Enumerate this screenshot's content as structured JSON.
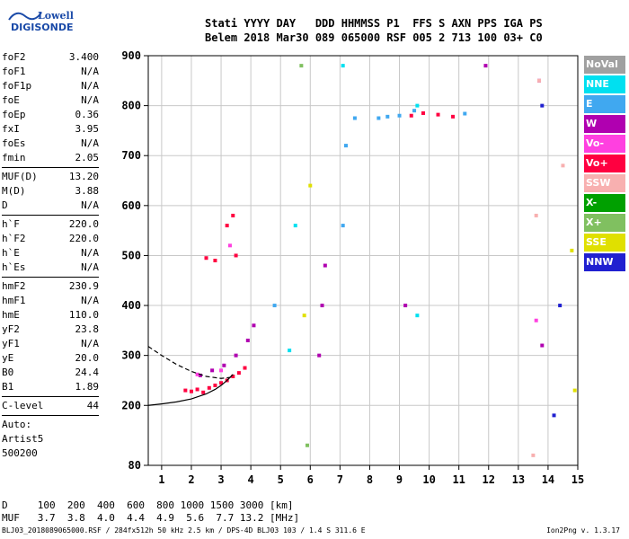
{
  "logo": {
    "line1": "Lowell",
    "line2": "DIGISONDE"
  },
  "header": {
    "line1": "Stati YYYY DAY   DDD HHMMSS P1  FFS S AXN PPS IGA PS",
    "line2": "Belem 2018 Mar30 089 065000 RSF 005 2 713 100 03+ C0"
  },
  "params": {
    "group1": [
      {
        "k": "foF2",
        "v": "3.400"
      },
      {
        "k": "foF1",
        "v": "N/A"
      },
      {
        "k": "foF1p",
        "v": "N/A"
      },
      {
        "k": "foE",
        "v": "N/A"
      },
      {
        "k": "foEp",
        "v": "0.36"
      },
      {
        "k": "fxI",
        "v": "3.95"
      },
      {
        "k": "foEs",
        "v": "N/A"
      },
      {
        "k": "fmin",
        "v": "2.05"
      }
    ],
    "group2": [
      {
        "k": "MUF(D)",
        "v": "13.20"
      },
      {
        "k": "M(D)",
        "v": "3.88"
      },
      {
        "k": "D",
        "v": "N/A"
      }
    ],
    "group3": [
      {
        "k": "h`F",
        "v": "220.0"
      },
      {
        "k": "h`F2",
        "v": "220.0"
      },
      {
        "k": "h`E",
        "v": "N/A"
      },
      {
        "k": "h`Es",
        "v": "N/A"
      }
    ],
    "group4": [
      {
        "k": "hmF2",
        "v": "230.9"
      },
      {
        "k": "hmF1",
        "v": "N/A"
      },
      {
        "k": "hmE",
        "v": "110.0"
      },
      {
        "k": "yF2",
        "v": "23.8"
      },
      {
        "k": "yF1",
        "v": "N/A"
      },
      {
        "k": "yE",
        "v": "20.0"
      },
      {
        "k": "B0",
        "v": "24.4"
      },
      {
        "k": "B1",
        "v": "1.89"
      }
    ],
    "group5": [
      {
        "k": "C-level",
        "v": "44"
      }
    ],
    "auto": [
      "Auto:",
      "Artist5",
      "500200"
    ]
  },
  "legend": [
    {
      "label": "NoVal",
      "color": "#a0a0a0"
    },
    {
      "label": "NNE",
      "color": "#00e0f0"
    },
    {
      "label": "E",
      "color": "#40a8f0"
    },
    {
      "label": "W",
      "color": "#b000b0"
    },
    {
      "label": "Vo-",
      "color": "#ff40e0"
    },
    {
      "label": "Vo+",
      "color": "#ff0040"
    },
    {
      "label": "SSW",
      "color": "#f8b0b0"
    },
    {
      "label": "X-",
      "color": "#00a000"
    },
    {
      "label": "X+",
      "color": "#80c060"
    },
    {
      "label": "SSE",
      "color": "#e0e000"
    },
    {
      "label": "NNW",
      "color": "#2020d0"
    }
  ],
  "dmuf": {
    "line1": "D     100  200  400  600  800 1000 1500 3000 [km]",
    "line2": "MUF   3.7  3.8  4.0  4.4  4.9  5.6  7.7 13.2 [MHz]"
  },
  "footer": "BLJ03_2018089065000.RSF / 284fx512h 50 kHz 2.5 km / DPS-4D BLJ03 103 / 1.4 S 311.6 E",
  "version": "Ion2Png v. 1.3.17",
  "chart_data": {
    "type": "scatter",
    "title": "",
    "xlabel": "",
    "ylabel": "",
    "xlim": [
      0.55,
      15
    ],
    "ylim": [
      80,
      900
    ],
    "xticks": [
      1,
      2,
      3,
      4,
      5,
      6,
      7,
      8,
      9,
      10,
      11,
      12,
      13,
      14,
      15
    ],
    "yticks": [
      80,
      200,
      300,
      400,
      500,
      600,
      700,
      800,
      900
    ],
    "grid": true,
    "legend_position": "right",
    "x_unit": "MHz",
    "y_unit": "km",
    "series": [
      {
        "name": "Vo+",
        "color": "#ff0040",
        "x": [
          1.8,
          2.0,
          2.2,
          2.4,
          2.6,
          2.8,
          3.0,
          3.2,
          3.4,
          3.6,
          3.8,
          2.5,
          2.8,
          3.2,
          3.4,
          3.5,
          9.4,
          9.8,
          10.3,
          10.8
        ],
        "y": [
          230,
          228,
          232,
          226,
          235,
          240,
          245,
          250,
          258,
          265,
          275,
          495,
          490,
          560,
          580,
          500,
          780,
          785,
          782,
          778
        ]
      },
      {
        "name": "W",
        "color": "#b000b0",
        "x": [
          2.3,
          2.7,
          3.1,
          3.5,
          3.9,
          4.1,
          6.3,
          6.4,
          6.5,
          9.2,
          11.9,
          13.7,
          13.8
        ],
        "y": [
          260,
          270,
          280,
          300,
          330,
          360,
          300,
          400,
          480,
          400,
          880,
          850,
          320
        ]
      },
      {
        "name": "E",
        "color": "#40a8f0",
        "x": [
          4.8,
          7.1,
          7.2,
          7.5,
          8.3,
          8.6,
          9.0,
          9.5,
          11.2
        ],
        "y": [
          400,
          560,
          720,
          775,
          775,
          778,
          780,
          790,
          784
        ]
      },
      {
        "name": "NNE",
        "color": "#00e0f0",
        "x": [
          5.3,
          5.5,
          7.1,
          9.6,
          9.6
        ],
        "y": [
          310,
          560,
          880,
          800,
          380
        ]
      },
      {
        "name": "SSW",
        "color": "#f8b0b0",
        "x": [
          13.5,
          13.6,
          13.7,
          14.5
        ],
        "y": [
          100,
          580,
          850,
          680
        ]
      },
      {
        "name": "SSE",
        "color": "#e0e000",
        "x": [
          5.8,
          6.0,
          14.8,
          14.9
        ],
        "y": [
          380,
          640,
          510,
          230
        ]
      },
      {
        "name": "X+",
        "color": "#80c060",
        "x": [
          5.7,
          5.9
        ],
        "y": [
          880,
          120
        ]
      },
      {
        "name": "NNW",
        "color": "#2020d0",
        "x": [
          13.8,
          14.2,
          14.4
        ],
        "y": [
          800,
          180,
          400
        ]
      },
      {
        "name": "Vo-",
        "color": "#ff40e0",
        "x": [
          2.2,
          3.0,
          3.3,
          13.6
        ],
        "y": [
          262,
          270,
          520,
          370
        ]
      }
    ],
    "profile_curves": {
      "solid": {
        "x": [
          0.55,
          1.0,
          1.5,
          2.0,
          2.5,
          2.8,
          3.0,
          3.2,
          3.4
        ],
        "y": [
          200,
          203,
          207,
          213,
          223,
          232,
          240,
          250,
          262
        ]
      },
      "dashed": {
        "x": [
          0.55,
          1.0,
          1.5,
          2.0,
          2.5,
          3.0,
          3.3,
          3.4
        ],
        "y": [
          318,
          300,
          282,
          268,
          258,
          254,
          256,
          262
        ]
      }
    }
  }
}
